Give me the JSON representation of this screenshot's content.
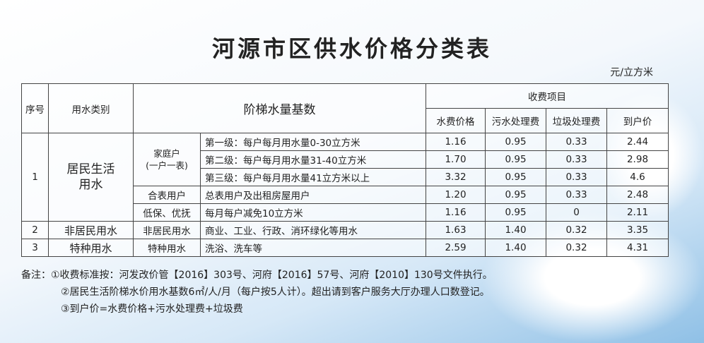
{
  "title": "河源市区供水价格分类表",
  "unit": "元/立方米",
  "headers": {
    "index": "序号",
    "category": "用水类别",
    "tier_base": "阶梯水量基数",
    "fees_group": "收费项目",
    "water_price": "水费价格",
    "sewage_fee": "污水处理费",
    "garbage_fee": "垃圾处理费",
    "total_price": "到户价"
  },
  "groups": {
    "g1_index": "1",
    "g1_category": "居民生活用水",
    "household": "家庭户\n(一户一表)",
    "g2_index": "2",
    "g2_category": "非居民用水",
    "g3_index": "3",
    "g3_category": "特种用水"
  },
  "rows": [
    {
      "sub": "",
      "desc": "第一级：每户每月用水量0-30立方米",
      "water": "1.16",
      "sewage": "0.95",
      "garbage": "0.33",
      "total": "2.44"
    },
    {
      "sub": "",
      "desc": "第二级：每户每月用水量31-40立方米",
      "water": "1.70",
      "sewage": "0.95",
      "garbage": "0.33",
      "total": "2.98"
    },
    {
      "sub": "",
      "desc": "第三级：每户每月用水量41立方米以上",
      "water": "3.32",
      "sewage": "0.95",
      "garbage": "0.33",
      "total": "4.6"
    },
    {
      "sub": "合表用户",
      "desc": "总表用户及出租房屋用户",
      "water": "1.20",
      "sewage": "0.95",
      "garbage": "0.33",
      "total": "2.48"
    },
    {
      "sub": "低保、优抚",
      "desc": "每月每户减免10立方米",
      "water": "1.16",
      "sewage": "0.95",
      "garbage": "0",
      "total": "2.11"
    },
    {
      "sub": "非居民用水",
      "desc": "商业、工业、行政、消环绿化等用水",
      "water": "1.63",
      "sewage": "1.40",
      "garbage": "0.32",
      "total": "3.35"
    },
    {
      "sub": "特种用水",
      "desc": "洗浴、洗车等",
      "water": "2.59",
      "sewage": "1.40",
      "garbage": "0.32",
      "total": "4.31"
    }
  ],
  "notes": [
    "备注：①收费标准按：河发改价管【2016】303号、河府【2016】57号、河府【2010】130号文件执行。",
    "②居民生活阶梯水价用水基数6㎡/人/月（每户按5人计）。超出请到客户服务大厅办理人口数登记。",
    "③到户价=水费价格+污水处理费+垃圾费"
  ]
}
